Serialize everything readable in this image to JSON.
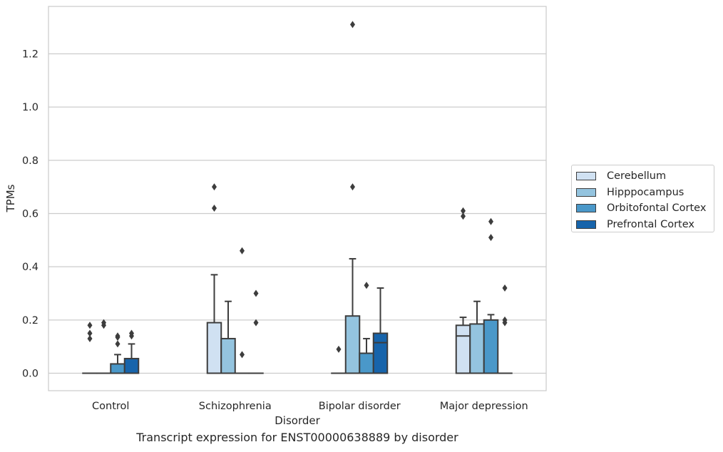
{
  "chart_data": {
    "type": "box",
    "title": "",
    "xlabel": "Disorder",
    "ylabel": "TPMs",
    "caption": "Transcript expression for ENST00000638889 by disorder",
    "ylim": [
      -0.065,
      1.38
    ],
    "yticks": [
      "0.0",
      "0.2",
      "0.4",
      "0.6",
      "0.8",
      "1.0",
      "1.2"
    ],
    "ytick_values": [
      0.0,
      0.2,
      0.4,
      0.6,
      0.8,
      1.0,
      1.2
    ],
    "grid": "horizontal",
    "legend_position": "right",
    "categories": [
      "Control",
      "Schizophrenia",
      "Bipolar disorder",
      "Major depression"
    ],
    "series": [
      {
        "name": "Cerebellum",
        "color": "#d0e1f2",
        "boxes": [
          {
            "q1": 0.0,
            "median": 0.0,
            "q3": 0.0,
            "whisker_low": 0.0,
            "whisker_high": 0.0,
            "outliers": [
              0.13,
              0.15,
              0.18
            ]
          },
          {
            "q1": 0.0,
            "median": 0.0,
            "q3": 0.19,
            "whisker_low": 0.0,
            "whisker_high": 0.37,
            "outliers": [
              0.62,
              0.7
            ]
          },
          {
            "q1": 0.0,
            "median": 0.0,
            "q3": 0.0,
            "whisker_low": 0.0,
            "whisker_high": 0.0,
            "outliers": [
              0.09
            ]
          },
          {
            "q1": 0.0,
            "median": 0.14,
            "q3": 0.18,
            "whisker_low": 0.0,
            "whisker_high": 0.21,
            "outliers": [
              0.59,
              0.61
            ]
          }
        ]
      },
      {
        "name": "Hipppocampus",
        "color": "#94c4df",
        "boxes": [
          {
            "q1": 0.0,
            "median": 0.0,
            "q3": 0.0,
            "whisker_low": 0.0,
            "whisker_high": 0.0,
            "outliers": [
              0.18,
              0.19
            ]
          },
          {
            "q1": 0.0,
            "median": 0.0,
            "q3": 0.13,
            "whisker_low": 0.0,
            "whisker_high": 0.27,
            "outliers": []
          },
          {
            "q1": 0.0,
            "median": 0.0,
            "q3": 0.215,
            "whisker_low": 0.0,
            "whisker_high": 0.43,
            "outliers": [
              0.7,
              1.31
            ]
          },
          {
            "q1": 0.0,
            "median": 0.0,
            "q3": 0.185,
            "whisker_low": 0.0,
            "whisker_high": 0.27,
            "outliers": []
          }
        ]
      },
      {
        "name": "Orbitofontal Cortex",
        "color": "#4a98c9",
        "boxes": [
          {
            "q1": 0.0,
            "median": 0.0,
            "q3": 0.035,
            "whisker_low": 0.0,
            "whisker_high": 0.07,
            "outliers": [
              0.11,
              0.135,
              0.14
            ]
          },
          {
            "q1": 0.0,
            "median": 0.0,
            "q3": 0.0,
            "whisker_low": 0.0,
            "whisker_high": 0.0,
            "outliers": [
              0.07,
              0.46
            ]
          },
          {
            "q1": 0.0,
            "median": 0.0,
            "q3": 0.075,
            "whisker_low": 0.0,
            "whisker_high": 0.13,
            "outliers": [
              0.33
            ]
          },
          {
            "q1": 0.0,
            "median": 0.0,
            "q3": 0.2,
            "whisker_low": 0.0,
            "whisker_high": 0.22,
            "outliers": [
              0.51,
              0.57
            ]
          }
        ]
      },
      {
        "name": "Prefrontal Cortex",
        "color": "#1764ab",
        "boxes": [
          {
            "q1": 0.0,
            "median": 0.0,
            "q3": 0.055,
            "whisker_low": 0.0,
            "whisker_high": 0.11,
            "outliers": [
              0.14,
              0.15
            ]
          },
          {
            "q1": 0.0,
            "median": 0.0,
            "q3": 0.0,
            "whisker_low": 0.0,
            "whisker_high": 0.0,
            "outliers": [
              0.19,
              0.3
            ]
          },
          {
            "q1": 0.0,
            "median": 0.115,
            "q3": 0.15,
            "whisker_low": 0.0,
            "whisker_high": 0.32,
            "outliers": []
          },
          {
            "q1": 0.0,
            "median": 0.0,
            "q3": 0.0,
            "whisker_low": 0.0,
            "whisker_high": 0.0,
            "outliers": [
              0.19,
              0.2,
              0.32
            ]
          }
        ]
      }
    ]
  }
}
